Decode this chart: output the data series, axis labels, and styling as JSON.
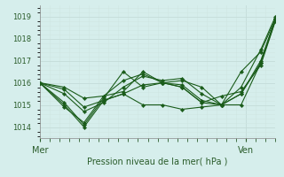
{
  "xlabel": "Pression niveau de la mer( hPa )",
  "ylim": [
    1013.5,
    1019.5
  ],
  "yticks": [
    1014,
    1015,
    1016,
    1017,
    1018,
    1019
  ],
  "xlim": [
    0,
    48
  ],
  "xtick_positions": [
    0,
    42
  ],
  "xtick_labels": [
    "Mer",
    "Ven"
  ],
  "bg_color": "#d6eeec",
  "grid_major_color": "#c4dcd8",
  "grid_minor_color": "#d0e6e2",
  "line_color": "#1a5c1a",
  "series": [
    {
      "x": [
        0,
        5,
        9,
        13,
        17,
        21,
        25,
        29,
        33,
        37,
        41,
        45,
        48
      ],
      "y": [
        1016.0,
        1015.7,
        1014.9,
        1015.2,
        1015.5,
        1015.9,
        1016.0,
        1015.8,
        1015.1,
        1015.0,
        1016.5,
        1017.4,
        1018.9
      ]
    },
    {
      "x": [
        0,
        5,
        9,
        13,
        17,
        21,
        25,
        29,
        33,
        37,
        41,
        45,
        48
      ],
      "y": [
        1016.0,
        1015.5,
        1014.7,
        1015.1,
        1015.8,
        1016.3,
        1016.1,
        1016.2,
        1015.5,
        1015.0,
        1015.5,
        1016.9,
        1018.85
      ]
    },
    {
      "x": [
        0,
        5,
        9,
        13,
        17,
        21,
        25,
        29,
        33,
        37,
        41,
        45,
        48
      ],
      "y": [
        1016.0,
        1015.1,
        1014.1,
        1015.3,
        1016.5,
        1015.8,
        1016.0,
        1015.8,
        1015.1,
        1015.4,
        1015.6,
        1016.8,
        1018.8
      ]
    },
    {
      "x": [
        0,
        5,
        9,
        13,
        17,
        21,
        25,
        29,
        33,
        37,
        41,
        45,
        48
      ],
      "y": [
        1016.0,
        1015.0,
        1014.0,
        1015.2,
        1015.5,
        1015.0,
        1015.0,
        1014.8,
        1014.9,
        1015.0,
        1015.0,
        1016.9,
        1018.85
      ]
    },
    {
      "x": [
        0,
        5,
        9,
        13,
        17,
        21,
        25,
        29,
        33,
        37,
        41,
        45,
        48
      ],
      "y": [
        1016.0,
        1014.9,
        1014.2,
        1015.4,
        1016.1,
        1016.4,
        1016.0,
        1016.1,
        1015.8,
        1015.0,
        1015.5,
        1017.0,
        1018.9
      ]
    },
    {
      "x": [
        0,
        5,
        9,
        13,
        17,
        21,
        25,
        29,
        33,
        37,
        41,
        45,
        48
      ],
      "y": [
        1016.0,
        1015.8,
        1015.3,
        1015.4,
        1015.6,
        1016.5,
        1016.0,
        1015.9,
        1015.2,
        1015.0,
        1015.8,
        1017.5,
        1019.0
      ]
    }
  ]
}
